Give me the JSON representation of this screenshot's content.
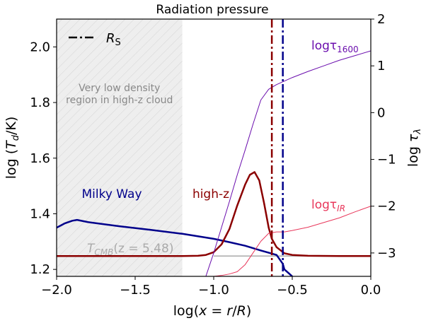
{
  "chart_data": {
    "type": "line",
    "title": "Radiation pressure",
    "xlabel": "log(x = r/R)",
    "ylabel": "log (T_d/K)",
    "y2label": "log τ_λ",
    "xlim": [
      -2.0,
      0.0
    ],
    "ylim": [
      1.175,
      2.1
    ],
    "y2lim": [
      -3.5,
      2.0
    ],
    "xticks": [
      -2.0,
      -1.5,
      -1.0,
      -0.5,
      0.0
    ],
    "xtick_labels": [
      "−2.0",
      "−1.5",
      "−1.0",
      "−0.5",
      "0.0"
    ],
    "yticks": [
      1.2,
      1.4,
      1.6,
      1.8,
      2.0
    ],
    "ytick_labels": [
      "1.2",
      "1.4",
      "1.6",
      "1.8",
      "2.0"
    ],
    "y2ticks": [
      -3,
      -2,
      -1,
      0,
      1,
      2
    ],
    "y2tick_labels": [
      "−3",
      "−2",
      "−1",
      "0",
      "1",
      "2"
    ],
    "shaded_region": {
      "x_range": [
        -2.0,
        -1.2
      ],
      "label_lines": [
        "Very low density",
        "region in high-z cloud"
      ],
      "color": "#eeeeee"
    },
    "legend": {
      "label": "R",
      "label_sub": "S",
      "position": "top-left"
    },
    "series": [
      {
        "name": "Milky Way",
        "axis": "left",
        "color": "#00008b",
        "x": [
          -2.0,
          -1.95,
          -1.9,
          -1.87,
          -1.8,
          -1.6,
          -1.4,
          -1.2,
          -1.0,
          -0.9,
          -0.8,
          -0.7,
          -0.6,
          -0.56,
          -0.55,
          -0.52,
          -0.5
        ],
        "y": [
          1.35,
          1.365,
          1.375,
          1.378,
          1.37,
          1.355,
          1.342,
          1.328,
          1.31,
          1.298,
          1.285,
          1.268,
          1.252,
          1.22,
          1.2,
          1.185,
          1.175
        ]
      },
      {
        "name": "high-z",
        "axis": "left",
        "color": "#8b0000",
        "x": [
          -2.0,
          -1.2,
          -1.1,
          -1.05,
          -1.0,
          -0.95,
          -0.9,
          -0.85,
          -0.8,
          -0.77,
          -0.74,
          -0.71,
          -0.68,
          -0.65,
          -0.63,
          -0.6,
          -0.55,
          -0.5,
          -0.4,
          -0.2,
          0.0
        ],
        "y": [
          1.248,
          1.248,
          1.249,
          1.252,
          1.262,
          1.29,
          1.345,
          1.43,
          1.505,
          1.54,
          1.55,
          1.52,
          1.44,
          1.35,
          1.31,
          1.28,
          1.258,
          1.252,
          1.249,
          1.248,
          1.248
        ]
      },
      {
        "name": "logτ1600",
        "axis": "right",
        "color": "#6a0dad",
        "x": [
          -1.05,
          -1.0,
          -0.95,
          -0.9,
          -0.85,
          -0.8,
          -0.75,
          -0.7,
          -0.65,
          -0.6,
          -0.5,
          -0.4,
          -0.3,
          -0.2,
          -0.1,
          0.0
        ],
        "y": [
          -3.5,
          -3.0,
          -2.45,
          -1.9,
          -1.33,
          -0.8,
          -0.25,
          0.27,
          0.5,
          0.6,
          0.75,
          0.88,
          1.0,
          1.12,
          1.22,
          1.32
        ]
      },
      {
        "name": "logτIR",
        "axis": "right",
        "color": "#e8365a",
        "x": [
          -1.0,
          -0.95,
          -0.9,
          -0.85,
          -0.8,
          -0.75,
          -0.7,
          -0.65,
          -0.6,
          -0.55,
          -0.5,
          -0.4,
          -0.3,
          -0.2,
          -0.1,
          0.0
        ],
        "y": [
          -3.5,
          -3.48,
          -3.45,
          -3.4,
          -3.25,
          -3.0,
          -2.75,
          -2.58,
          -2.55,
          -2.55,
          -2.52,
          -2.45,
          -2.35,
          -2.25,
          -2.12,
          -2.0
        ]
      }
    ],
    "vlines": [
      {
        "name": "high-z R_S",
        "x": -0.63,
        "color": "#8b0000",
        "style": "dashdot"
      },
      {
        "name": "Milky Way R_S",
        "x": -0.56,
        "color": "#00008b",
        "style": "dashdot"
      }
    ],
    "hline": {
      "name": "T_CMB(z=5.48)",
      "y": 1.248,
      "x_start": -1.0,
      "color": "#aaaaaa"
    },
    "annotations": {
      "milky_way": "Milky Way",
      "high_z": "high-z",
      "tau1600_prefix": "logτ",
      "tau1600_sub": "1600",
      "tauir_prefix": "logτ",
      "tauir_sub": "IR",
      "tcmb": "T",
      "tcmb_sub": "CMB",
      "tcmb_suffix": "(z = 5.48)"
    },
    "colors": {
      "milky_way": "#00008b",
      "high_z": "#8b0000",
      "tau1600": "#6a0dad",
      "tauir": "#e8365a",
      "tcmb": "#aaaaaa",
      "shade_text": "#888888"
    }
  }
}
